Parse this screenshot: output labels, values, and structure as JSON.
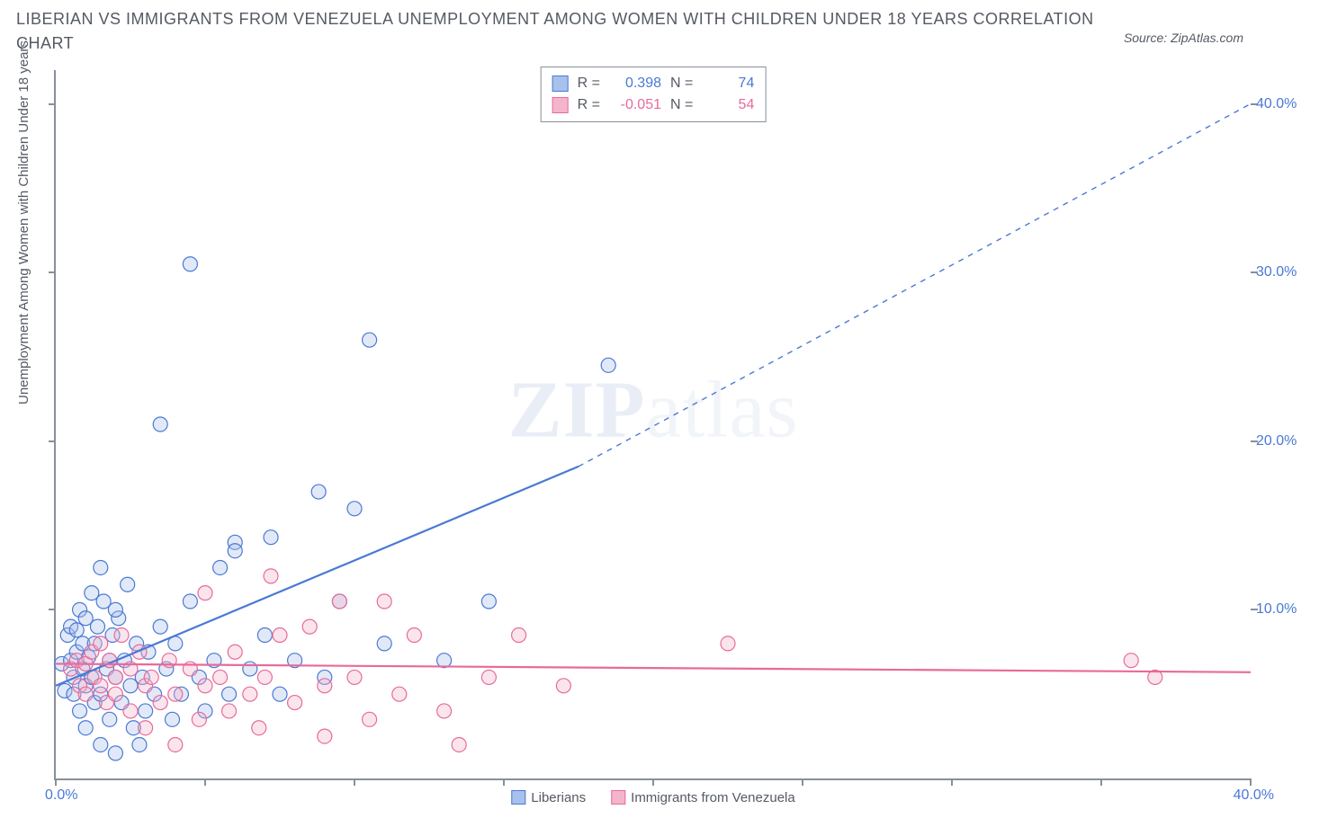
{
  "title": "LIBERIAN VS IMMIGRANTS FROM VENEZUELA UNEMPLOYMENT AMONG WOMEN WITH CHILDREN UNDER 18 YEARS CORRELATION CHART",
  "source_label": "Source: ZipAtlas.com",
  "watermark": {
    "strong": "ZIP",
    "light": "atlas"
  },
  "chart": {
    "type": "scatter",
    "ylabel": "Unemployment Among Women with Children Under 18 years",
    "xlim": [
      0,
      40
    ],
    "ylim": [
      0,
      42
    ],
    "x_ticks": [
      0,
      5,
      10,
      15,
      20,
      25,
      30,
      35,
      40
    ],
    "y_right_ticks": [
      10,
      20,
      30,
      40
    ],
    "y_right_format_suffix": "%",
    "x_label_zero": "0.0%",
    "x_label_max": "40.0%",
    "axis_color": "#888f9b",
    "label_color": "#555a63",
    "tick_label_color": "#4a79d4",
    "background_color": "#ffffff",
    "marker_radius": 8,
    "marker_fill_opacity": 0.35,
    "marker_stroke_width": 1.2,
    "regression_solid_width": 2.2,
    "regression_dash_width": 1.4,
    "regression_dash": "6 6"
  },
  "series": [
    {
      "key": "liberians",
      "label": "Liberians",
      "color": "#4a79d4",
      "fill": "#a8c1ec",
      "stats": {
        "R": "0.398",
        "N": "74"
      },
      "regression": {
        "solid": {
          "x1": 0,
          "y1": 5.5,
          "x2": 17.5,
          "y2": 18.5
        },
        "dashed": {
          "x1": 17.5,
          "y1": 18.5,
          "x2": 40,
          "y2": 40
        }
      },
      "points": [
        [
          0.2,
          6.8
        ],
        [
          0.3,
          5.2
        ],
        [
          0.4,
          8.5
        ],
        [
          0.5,
          7.0
        ],
        [
          0.5,
          9.0
        ],
        [
          0.6,
          5.0
        ],
        [
          0.6,
          6.0
        ],
        [
          0.7,
          8.8
        ],
        [
          0.7,
          7.5
        ],
        [
          0.8,
          4.0
        ],
        [
          0.8,
          10.0
        ],
        [
          0.9,
          6.5
        ],
        [
          0.9,
          8.0
        ],
        [
          1.0,
          5.5
        ],
        [
          1.0,
          9.5
        ],
        [
          1.0,
          3.0
        ],
        [
          1.1,
          7.2
        ],
        [
          1.2,
          11.0
        ],
        [
          1.2,
          6.0
        ],
        [
          1.3,
          4.5
        ],
        [
          1.3,
          8.0
        ],
        [
          1.4,
          9.0
        ],
        [
          1.5,
          12.5
        ],
        [
          1.5,
          5.0
        ],
        [
          1.5,
          2.0
        ],
        [
          1.6,
          10.5
        ],
        [
          1.7,
          6.5
        ],
        [
          1.8,
          3.5
        ],
        [
          1.8,
          7.0
        ],
        [
          1.9,
          8.5
        ],
        [
          2.0,
          1.5
        ],
        [
          2.0,
          6.0
        ],
        [
          2.1,
          9.5
        ],
        [
          2.2,
          4.5
        ],
        [
          2.3,
          7.0
        ],
        [
          2.4,
          11.5
        ],
        [
          2.5,
          5.5
        ],
        [
          2.6,
          3.0
        ],
        [
          2.7,
          8.0
        ],
        [
          2.8,
          2.0
        ],
        [
          2.9,
          6.0
        ],
        [
          3.0,
          4.0
        ],
        [
          3.1,
          7.5
        ],
        [
          3.3,
          5.0
        ],
        [
          3.5,
          9.0
        ],
        [
          3.5,
          21.0
        ],
        [
          3.7,
          6.5
        ],
        [
          3.9,
          3.5
        ],
        [
          4.0,
          8.0
        ],
        [
          4.2,
          5.0
        ],
        [
          4.5,
          10.5
        ],
        [
          4.5,
          30.5
        ],
        [
          4.8,
          6.0
        ],
        [
          5.0,
          4.0
        ],
        [
          5.3,
          7.0
        ],
        [
          5.5,
          12.5
        ],
        [
          5.8,
          5.0
        ],
        [
          6.0,
          14.0
        ],
        [
          6.0,
          13.5
        ],
        [
          6.5,
          6.5
        ],
        [
          7.0,
          8.5
        ],
        [
          7.2,
          14.3
        ],
        [
          7.5,
          5.0
        ],
        [
          8.0,
          7.0
        ],
        [
          8.8,
          17.0
        ],
        [
          9.0,
          6.0
        ],
        [
          9.5,
          10.5
        ],
        [
          10.0,
          16.0
        ],
        [
          10.5,
          26.0
        ],
        [
          11.0,
          8.0
        ],
        [
          13.0,
          7.0
        ],
        [
          14.5,
          10.5
        ],
        [
          18.5,
          24.5
        ],
        [
          2.0,
          10.0
        ]
      ]
    },
    {
      "key": "venezuela",
      "label": "Immigrants from Venezuela",
      "color": "#e86a9a",
      "fill": "#f4b5cc",
      "stats": {
        "R": "-0.051",
        "N": "54"
      },
      "regression": {
        "solid": {
          "x1": 0,
          "y1": 6.8,
          "x2": 40,
          "y2": 6.3
        },
        "dashed": null
      },
      "points": [
        [
          0.5,
          6.5
        ],
        [
          0.7,
          7.0
        ],
        [
          0.8,
          5.5
        ],
        [
          1.0,
          6.8
        ],
        [
          1.0,
          5.0
        ],
        [
          1.2,
          7.5
        ],
        [
          1.3,
          6.0
        ],
        [
          1.5,
          8.0
        ],
        [
          1.5,
          5.5
        ],
        [
          1.7,
          4.5
        ],
        [
          1.8,
          7.0
        ],
        [
          2.0,
          6.0
        ],
        [
          2.0,
          5.0
        ],
        [
          2.2,
          8.5
        ],
        [
          2.5,
          6.5
        ],
        [
          2.5,
          4.0
        ],
        [
          2.8,
          7.5
        ],
        [
          3.0,
          5.5
        ],
        [
          3.0,
          3.0
        ],
        [
          3.2,
          6.0
        ],
        [
          3.5,
          4.5
        ],
        [
          3.8,
          7.0
        ],
        [
          4.0,
          5.0
        ],
        [
          4.0,
          2.0
        ],
        [
          4.5,
          6.5
        ],
        [
          4.8,
          3.5
        ],
        [
          5.0,
          5.5
        ],
        [
          5.0,
          11.0
        ],
        [
          5.5,
          6.0
        ],
        [
          5.8,
          4.0
        ],
        [
          6.0,
          7.5
        ],
        [
          6.5,
          5.0
        ],
        [
          6.8,
          3.0
        ],
        [
          7.0,
          6.0
        ],
        [
          7.2,
          12.0
        ],
        [
          7.5,
          8.5
        ],
        [
          8.0,
          4.5
        ],
        [
          8.5,
          9.0
        ],
        [
          9.0,
          5.5
        ],
        [
          9.0,
          2.5
        ],
        [
          9.5,
          10.5
        ],
        [
          10.0,
          6.0
        ],
        [
          10.5,
          3.5
        ],
        [
          11.0,
          10.5
        ],
        [
          11.5,
          5.0
        ],
        [
          12.0,
          8.5
        ],
        [
          13.0,
          4.0
        ],
        [
          13.5,
          2.0
        ],
        [
          14.5,
          6.0
        ],
        [
          15.5,
          8.5
        ],
        [
          17.0,
          5.5
        ],
        [
          22.5,
          8.0
        ],
        [
          36.0,
          7.0
        ],
        [
          36.8,
          6.0
        ]
      ]
    }
  ],
  "stats_box": {
    "R_label": "R =",
    "N_label": "N ="
  },
  "legend_bottom": [
    {
      "series": "liberians"
    },
    {
      "series": "venezuela"
    }
  ]
}
